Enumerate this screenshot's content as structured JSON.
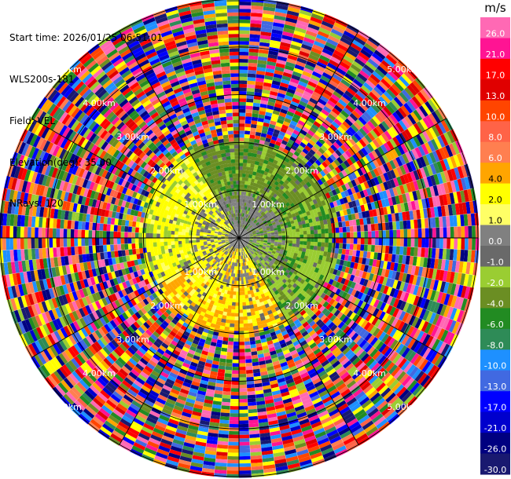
{
  "info": {
    "start_time": "Start time: 2026/01/25 06:51:01",
    "instrument": "WLS200s-181",
    "field": "Field: VEL",
    "elevation": "Elevation(deg): 35.00",
    "nrays": "NRays: 120"
  },
  "chart_data": {
    "type": "heatmap",
    "projection": "polar PPI",
    "field": "VEL",
    "units": "m/s",
    "elevation_deg": 35.0,
    "nrays": 120,
    "range_rings_km": [
      1.0,
      2.0,
      3.0,
      4.0,
      5.0
    ],
    "range_ring_labels": [
      "1.00km",
      "2.00km",
      "3.00km",
      "4.00km",
      "5.00km"
    ],
    "max_range_km": 5.0,
    "valid_data_range_km": 2.1,
    "colorbar": {
      "title": "m/s",
      "tick_labels": [
        "26.0",
        "21.0",
        "17.0",
        "13.0",
        "10.0",
        "8.0",
        "6.0",
        "4.0",
        "2.0",
        "1.0",
        "0.0",
        "-1.0",
        "-2.0",
        "-4.0",
        "-6.0",
        "-8.0",
        "-10.0",
        "-13.0",
        "-17.0",
        "-21.0",
        "-26.0",
        "-30.0"
      ],
      "colors": [
        "#ff69b4",
        "#ff1493",
        "#ff0000",
        "#e00000",
        "#ff4500",
        "#ff6347",
        "#ff7f50",
        "#ffa500",
        "#ffff00",
        "#ffff66",
        "#808080",
        "#696969",
        "#9acd32",
        "#6b8e23",
        "#228b22",
        "#2e8b57",
        "#1e90ff",
        "#4169e1",
        "#0000ff",
        "#0000cd",
        "#000080",
        "#191970"
      ]
    },
    "near_field_pattern": {
      "north_sector": "green (-4 to -8 m/s)",
      "east_sector": "green/olive (-2 to -6 m/s)",
      "south_sector": "yellow/orange (+2 to +6 m/s)",
      "west_sector": "yellow (+1 to +4 m/s)",
      "center": "gray (~0 m/s)"
    }
  }
}
